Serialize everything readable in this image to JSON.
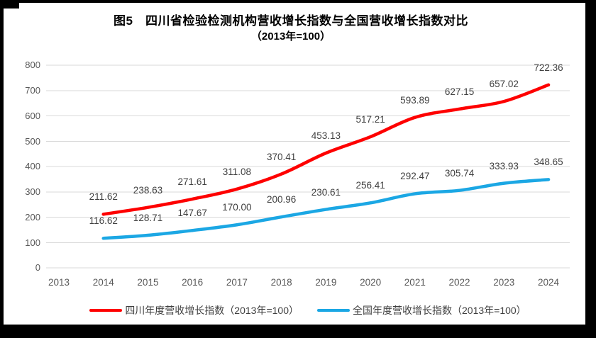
{
  "title": {
    "line1": "图5　四川省检验检测机构营收增长指数与全国营收增长指数对比",
    "line2": "（2013年=100）"
  },
  "chart_data": {
    "type": "line",
    "title": "图5 四川省检验检测机构营收增长指数与全国营收增长指数对比（2013年=100）",
    "categories": [
      "2013",
      "2014",
      "2015",
      "2016",
      "2017",
      "2018",
      "2019",
      "2020",
      "2021",
      "2022",
      "2023",
      "2024"
    ],
    "series": [
      {
        "name": "四川年度营收增长指数（2013年=100）",
        "color": "#FE0000",
        "values": [
          null,
          211.62,
          238.63,
          271.61,
          311.08,
          370.41,
          453.13,
          517.21,
          593.89,
          627.15,
          657.02,
          722.36
        ]
      },
      {
        "name": "全国年度营收增长指数（2013年=100）",
        "color": "#1BA7E4",
        "values": [
          null,
          116.62,
          128.71,
          147.67,
          170.0,
          200.96,
          230.61,
          256.41,
          292.47,
          305.74,
          333.93,
          348.65
        ]
      }
    ],
    "xlabel": "",
    "ylabel": "",
    "ylim": [
      0,
      800
    ],
    "ytick_interval": 100,
    "grid": true,
    "data_labels": true,
    "smoothed_lines": true,
    "legend_position": "bottom"
  },
  "style": {
    "grid_color": "#D9D9D9",
    "axis_label_color": "#595959",
    "data_label_color": "#404040",
    "title_color": "#000000",
    "frame_color": "#000000",
    "background": "#FFFFFF"
  }
}
